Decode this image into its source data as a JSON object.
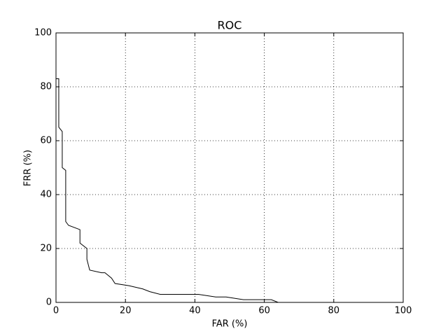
{
  "chart_data": {
    "type": "line",
    "title": "ROC",
    "x_label": "FAR (%)",
    "y_label": "FRR (%)",
    "series": [
      {
        "name": "ROC",
        "color": "#000000",
        "x": [
          0,
          0.8,
          0.8,
          1.8,
          1.8,
          2.8,
          2.8,
          3.6,
          6.9,
          6.9,
          8.9,
          8.9,
          9.7,
          13.1,
          14.1,
          16,
          17,
          21,
          25,
          27,
          30,
          41,
          46,
          49,
          54,
          62,
          64,
          100
        ],
        "values": [
          83,
          83,
          65,
          63.4,
          50,
          49,
          30,
          28.6,
          27,
          22,
          20,
          16,
          12,
          11,
          11,
          9,
          7,
          6.2,
          5,
          4,
          3,
          3,
          2,
          2,
          1,
          1,
          0,
          0
        ]
      }
    ],
    "xlim": [
      0,
      100
    ],
    "ylim": [
      0,
      100
    ],
    "xticks": [
      0,
      20,
      40,
      60,
      80,
      100
    ],
    "yticks": [
      0,
      20,
      40,
      60,
      80,
      100
    ],
    "grid": true
  }
}
